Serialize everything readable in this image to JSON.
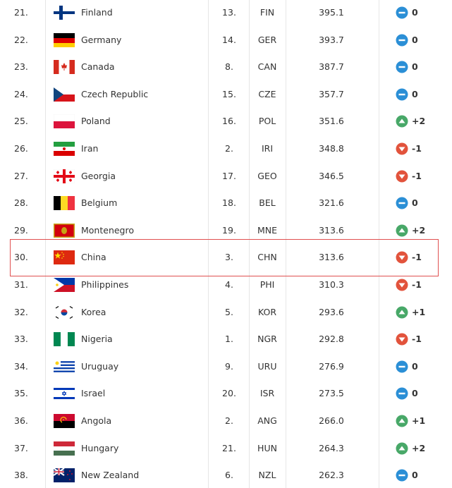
{
  "table": {
    "rows": [
      [
        "21.",
        "Finland",
        "13.",
        "FIN",
        "395.1",
        "0"
      ],
      [
        "22.",
        "Germany",
        "14.",
        "GER",
        "393.7",
        "0"
      ],
      [
        "23.",
        "Canada",
        "8.",
        "CAN",
        "387.7",
        "0"
      ],
      [
        "24.",
        "Czech Republic",
        "15.",
        "CZE",
        "357.7",
        "0"
      ],
      [
        "25.",
        "Poland",
        "16.",
        "POL",
        "351.6",
        "+2"
      ],
      [
        "26.",
        "Iran",
        "2.",
        "IRI",
        "348.8",
        "-1"
      ],
      [
        "27.",
        "Georgia",
        "17.",
        "GEO",
        "346.5",
        "-1"
      ],
      [
        "28.",
        "Belgium",
        "18.",
        "BEL",
        "321.6",
        "0"
      ],
      [
        "29.",
        "Montenegro",
        "19.",
        "MNE",
        "313.6",
        "+2"
      ],
      [
        "30.",
        "China",
        "3.",
        "CHN",
        "313.6",
        "-1"
      ],
      [
        "31.",
        "Philippines",
        "4.",
        "PHI",
        "310.3",
        "-1"
      ],
      [
        "32.",
        "Korea",
        "5.",
        "KOR",
        "293.6",
        "+1"
      ],
      [
        "33.",
        "Nigeria",
        "1.",
        "NGR",
        "292.8",
        "-1"
      ],
      [
        "34.",
        "Uruguay",
        "9.",
        "URU",
        "276.9",
        "0"
      ],
      [
        "35.",
        "Israel",
        "20.",
        "ISR",
        "273.5",
        "0"
      ],
      [
        "36.",
        "Angola",
        "2.",
        "ANG",
        "266.0",
        "+1"
      ],
      [
        "37.",
        "Hungary",
        "21.",
        "HUN",
        "264.3",
        "+2"
      ],
      [
        "38.",
        "New Zealand",
        "6.",
        "NZL",
        "262.3",
        "0"
      ]
    ]
  }
}
